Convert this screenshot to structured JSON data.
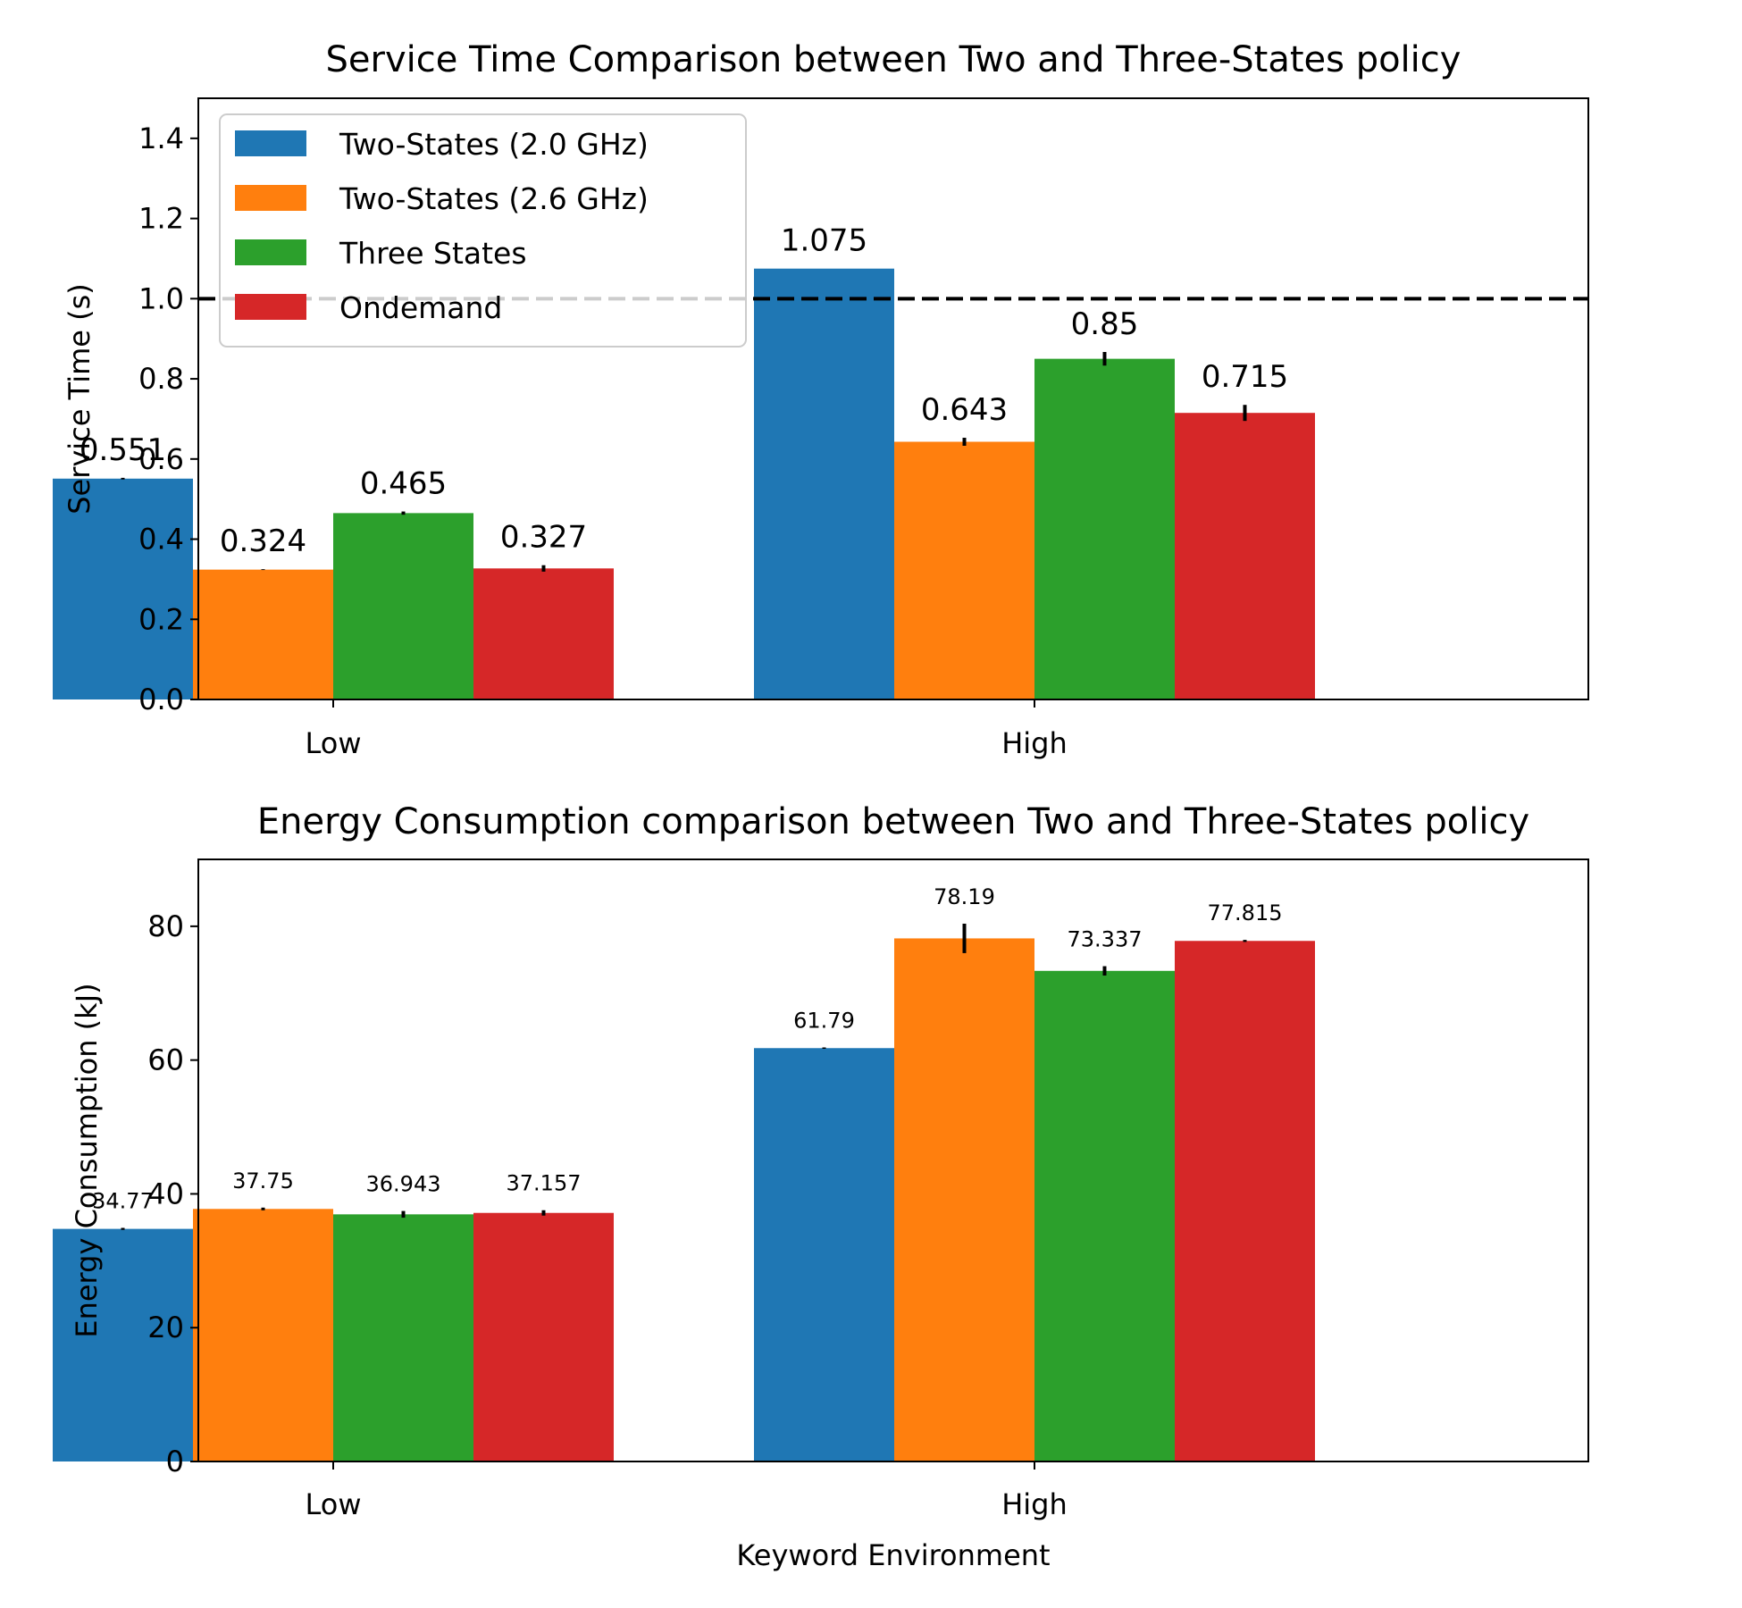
{
  "colors": {
    "Two-States (2.0 GHz)": "#1f77b4",
    "Two-States (2.6 GHz)": "#ff7f0e",
    "Three States": "#2ca02c",
    "Ondemand": "#d62728"
  },
  "chart_data": [
    {
      "type": "bar",
      "title": "Service Time Comparison between Two and Three-States policy",
      "xlabel": "",
      "ylabel": "Service Time (s)",
      "ylim": [
        0,
        1.5
      ],
      "yticks": [
        0.0,
        0.2,
        0.4,
        0.6,
        0.8,
        1.0,
        1.2,
        1.4
      ],
      "ytick_labels": [
        "0.0",
        "0.2",
        "0.4",
        "0.6",
        "0.8",
        "1.0",
        "1.2",
        "1.4"
      ],
      "categories": [
        "Low",
        "High"
      ],
      "reference_line": {
        "y": 1.0,
        "style": "dashed",
        "color": "#000000"
      },
      "legend": "top-left",
      "grid": false,
      "series": [
        {
          "name": "Two-States (2.0 GHz)",
          "values": [
            0.551,
            1.075
          ],
          "errors": [
            0.002,
            0.0
          ],
          "labels": [
            "0.551",
            "1.075"
          ]
        },
        {
          "name": "Two-States (2.6 GHz)",
          "values": [
            0.324,
            0.643
          ],
          "errors": [
            0.001,
            0.01
          ],
          "labels": [
            "0.324",
            "0.643"
          ]
        },
        {
          "name": "Three States",
          "values": [
            0.465,
            0.85
          ],
          "errors": [
            0.004,
            0.017
          ],
          "labels": [
            "0.465",
            "0.85"
          ]
        },
        {
          "name": "Ondemand",
          "values": [
            0.327,
            0.715
          ],
          "errors": [
            0.008,
            0.02
          ],
          "labels": [
            "0.327",
            "0.715"
          ]
        }
      ]
    },
    {
      "type": "bar",
      "title": "Energy Consumption comparison between Two and Three-States policy",
      "xlabel": "Keyword Environment",
      "ylabel": "Energy Consumption (kJ)",
      "ylim": [
        0,
        90
      ],
      "yticks": [
        0,
        20,
        40,
        60,
        80
      ],
      "ytick_labels": [
        "0",
        "20",
        "40",
        "60",
        "80"
      ],
      "categories": [
        "Low",
        "High"
      ],
      "legend": "none",
      "grid": false,
      "series": [
        {
          "name": "Two-States (2.0 GHz)",
          "values": [
            34.77,
            61.79
          ],
          "errors": [
            0.15,
            0.1
          ],
          "labels": [
            "34.77",
            "61.79"
          ]
        },
        {
          "name": "Two-States (2.6 GHz)",
          "values": [
            37.75,
            78.19
          ],
          "errors": [
            0.2,
            2.2
          ],
          "labels": [
            "37.75",
            "78.19"
          ]
        },
        {
          "name": "Three States",
          "values": [
            36.943,
            73.337
          ],
          "errors": [
            0.5,
            0.7
          ],
          "labels": [
            "36.943",
            "73.337"
          ]
        },
        {
          "name": "Ondemand",
          "values": [
            37.157,
            77.815
          ],
          "errors": [
            0.4,
            0.15
          ],
          "labels": [
            "37.157",
            "77.815"
          ]
        }
      ]
    }
  ]
}
